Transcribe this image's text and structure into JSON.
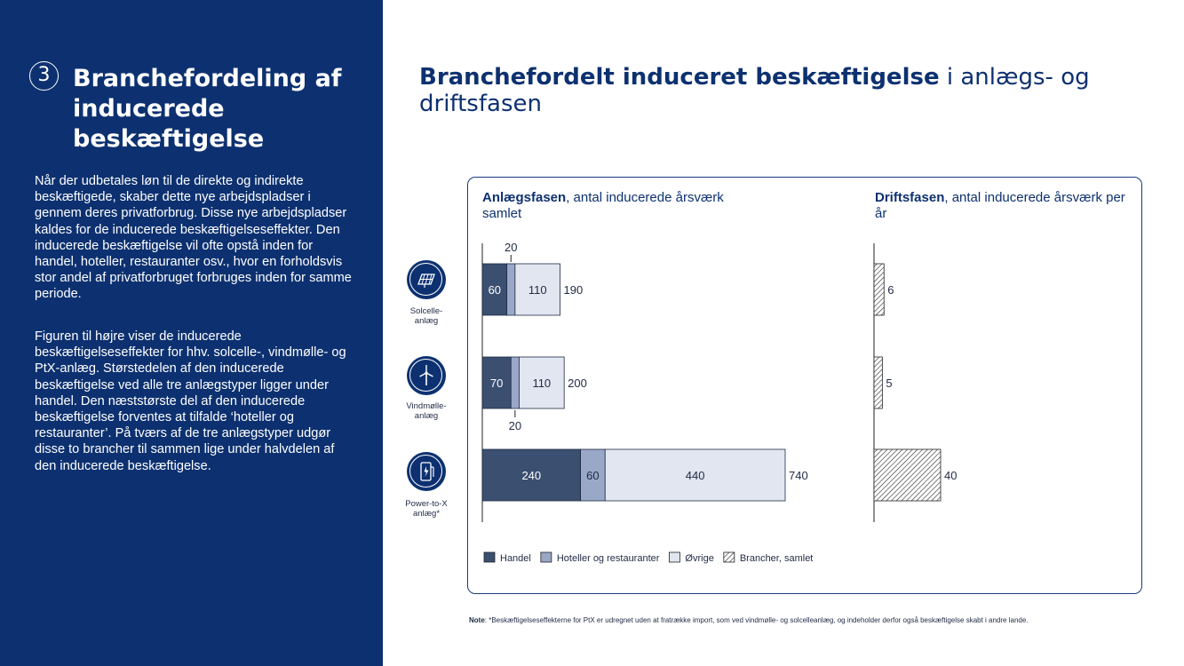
{
  "left": {
    "number": "3",
    "title": "Branchefordeling af inducerede beskæftigelse",
    "paragraph1": "Når der udbetales løn til de direkte og indirekte beskæftigede, skaber dette nye arbejdspladser i gennem deres privatforbrug. Disse nye arbejdspladser kaldes for de inducerede beskæftigelseseffekter. Den inducerede beskæftigelse vil ofte opstå inden for handel, hoteller, restauranter osv., hvor en forholdsvis stor andel af privatforbruget forbruges inden for samme periode.",
    "paragraph2": "Figuren til højre viser de inducerede beskæftigelseseffekter for hhv. solcelle-, vindmølle- og PtX-anlæg. Størstedelen af den inducerede beskæftigelse ved alle tre anlægstyper ligger under handel. Den næststørste del af den inducerede beskæftigelse forventes at tilfalde ‘hoteller og restauranter’. På tværs af de tre anlægstyper udgør disse to brancher til sammen lige under halvdelen af den inducerede beskæftigelse."
  },
  "main_title": {
    "bold": "Branchefordelt induceret beskæftigelse",
    "rest": " i anlægs- og driftsfasen"
  },
  "panel": {
    "anlaeg_heading_bold": "Anlægsfasen",
    "anlaeg_heading_rest": ", antal inducerede årsværk samlet",
    "drift_heading_bold": "Driftsfasen",
    "drift_heading_rest": ", antal inducerede årsværk per år"
  },
  "icons": [
    "solar-panel-icon",
    "wind-turbine-icon",
    "ptx-icon"
  ],
  "chart_data": [
    {
      "type": "bar",
      "orientation": "horizontal",
      "stacked": true,
      "categories": [
        "Solcelle-anlæg",
        "Vindmølle-anlæg",
        "Power-to-X anlæg*"
      ],
      "series": [
        {
          "name": "Handel",
          "values": [
            60,
            70,
            240
          ],
          "color": "#3b4f71"
        },
        {
          "name": "Hoteller og restauranter",
          "values": [
            20,
            20,
            60
          ],
          "color": "#9aa8c8"
        },
        {
          "name": "Øvrige",
          "values": [
            110,
            110,
            440
          ],
          "color": "#e1e6f0"
        }
      ],
      "totals": [
        190,
        200,
        740
      ],
      "xlim": [
        0,
        740
      ]
    },
    {
      "type": "bar",
      "orientation": "horizontal",
      "categories": [
        "Solcelle-anlæg",
        "Vindmølle-anlæg",
        "Power-to-X anlæg*"
      ],
      "series": [
        {
          "name": "Brancher, samlet",
          "values": [
            6,
            5,
            40
          ],
          "pattern": "hatched"
        }
      ],
      "xlim": [
        0,
        40
      ]
    }
  ],
  "legend": {
    "placement": "bottom",
    "items": [
      {
        "label": "Handel",
        "color": "#3b4f71"
      },
      {
        "label": "Hoteller og restauranter",
        "color": "#9aa8c8"
      },
      {
        "label": "Øvrige",
        "color": "#e1e6f0"
      },
      {
        "label": "Brancher, samlet",
        "pattern": "hatched"
      }
    ]
  },
  "note": {
    "bold": "Note",
    "text": ": *Beskæftigelseseffekterne for PtX er udregnet uden at fratrække import, som ved vindmølle- og solcelleanlæg, og indeholder derfor også beskæftigelse skabt i andre lande."
  }
}
